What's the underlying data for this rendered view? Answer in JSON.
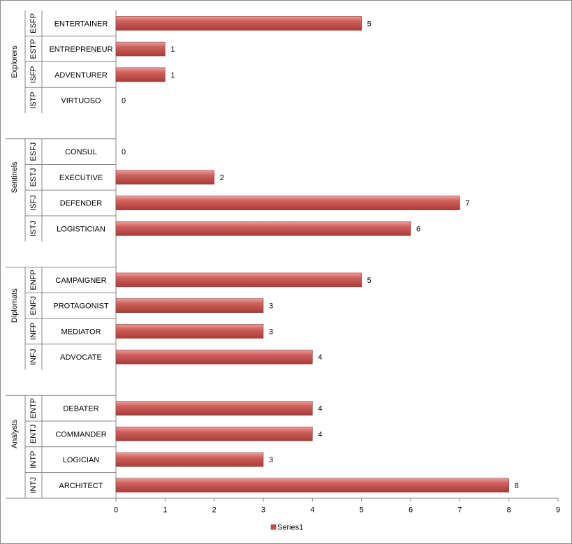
{
  "chart_data": {
    "type": "bar",
    "orientation": "horizontal",
    "groups": [
      {
        "name": "Explorers",
        "items": [
          {
            "code": "ESFP",
            "label": "ENTERTAINER",
            "value": 5
          },
          {
            "code": "ESTP",
            "label": "ENTREPRENEUR",
            "value": 1
          },
          {
            "code": "ISFP",
            "label": "ADVENTURER",
            "value": 1
          },
          {
            "code": "ISTP",
            "label": "VIRTUOSO",
            "value": 0
          }
        ]
      },
      {
        "name": "Sentinels",
        "items": [
          {
            "code": "ESFJ",
            "label": "CONSUL",
            "value": 0
          },
          {
            "code": "ESTJ",
            "label": "EXECUTIVE",
            "value": 2
          },
          {
            "code": "ISFJ",
            "label": "DEFENDER",
            "value": 7
          },
          {
            "code": "ISTJ",
            "label": "LOGISTICIAN",
            "value": 6
          }
        ]
      },
      {
        "name": "Diplomats",
        "items": [
          {
            "code": "ENFP",
            "label": "CAMPAIGNER",
            "value": 5
          },
          {
            "code": "ENFJ",
            "label": "PROTAGONIST",
            "value": 3
          },
          {
            "code": "INFP",
            "label": "MEDIATOR",
            "value": 3
          },
          {
            "code": "INFJ",
            "label": "ADVOCATE",
            "value": 4
          }
        ]
      },
      {
        "name": "Analysts",
        "items": [
          {
            "code": "ENTP",
            "label": "DEBATER",
            "value": 4
          },
          {
            "code": "ENTJ",
            "label": "COMMANDER",
            "value": 4
          },
          {
            "code": "INTP",
            "label": "LOGICIAN",
            "value": 3
          },
          {
            "code": "INTJ",
            "label": "ARCHITECT",
            "value": 8
          }
        ]
      }
    ],
    "series": [
      {
        "name": "Series1",
        "color": "#c0504d"
      }
    ],
    "xlim": [
      0,
      9
    ],
    "xticks": [
      "0",
      "1",
      "2",
      "3",
      "4",
      "5",
      "6",
      "7",
      "8",
      "9"
    ],
    "grid": false,
    "data_labels": true,
    "legend": "bottom",
    "title": "",
    "xlabel": "",
    "ylabel": ""
  }
}
